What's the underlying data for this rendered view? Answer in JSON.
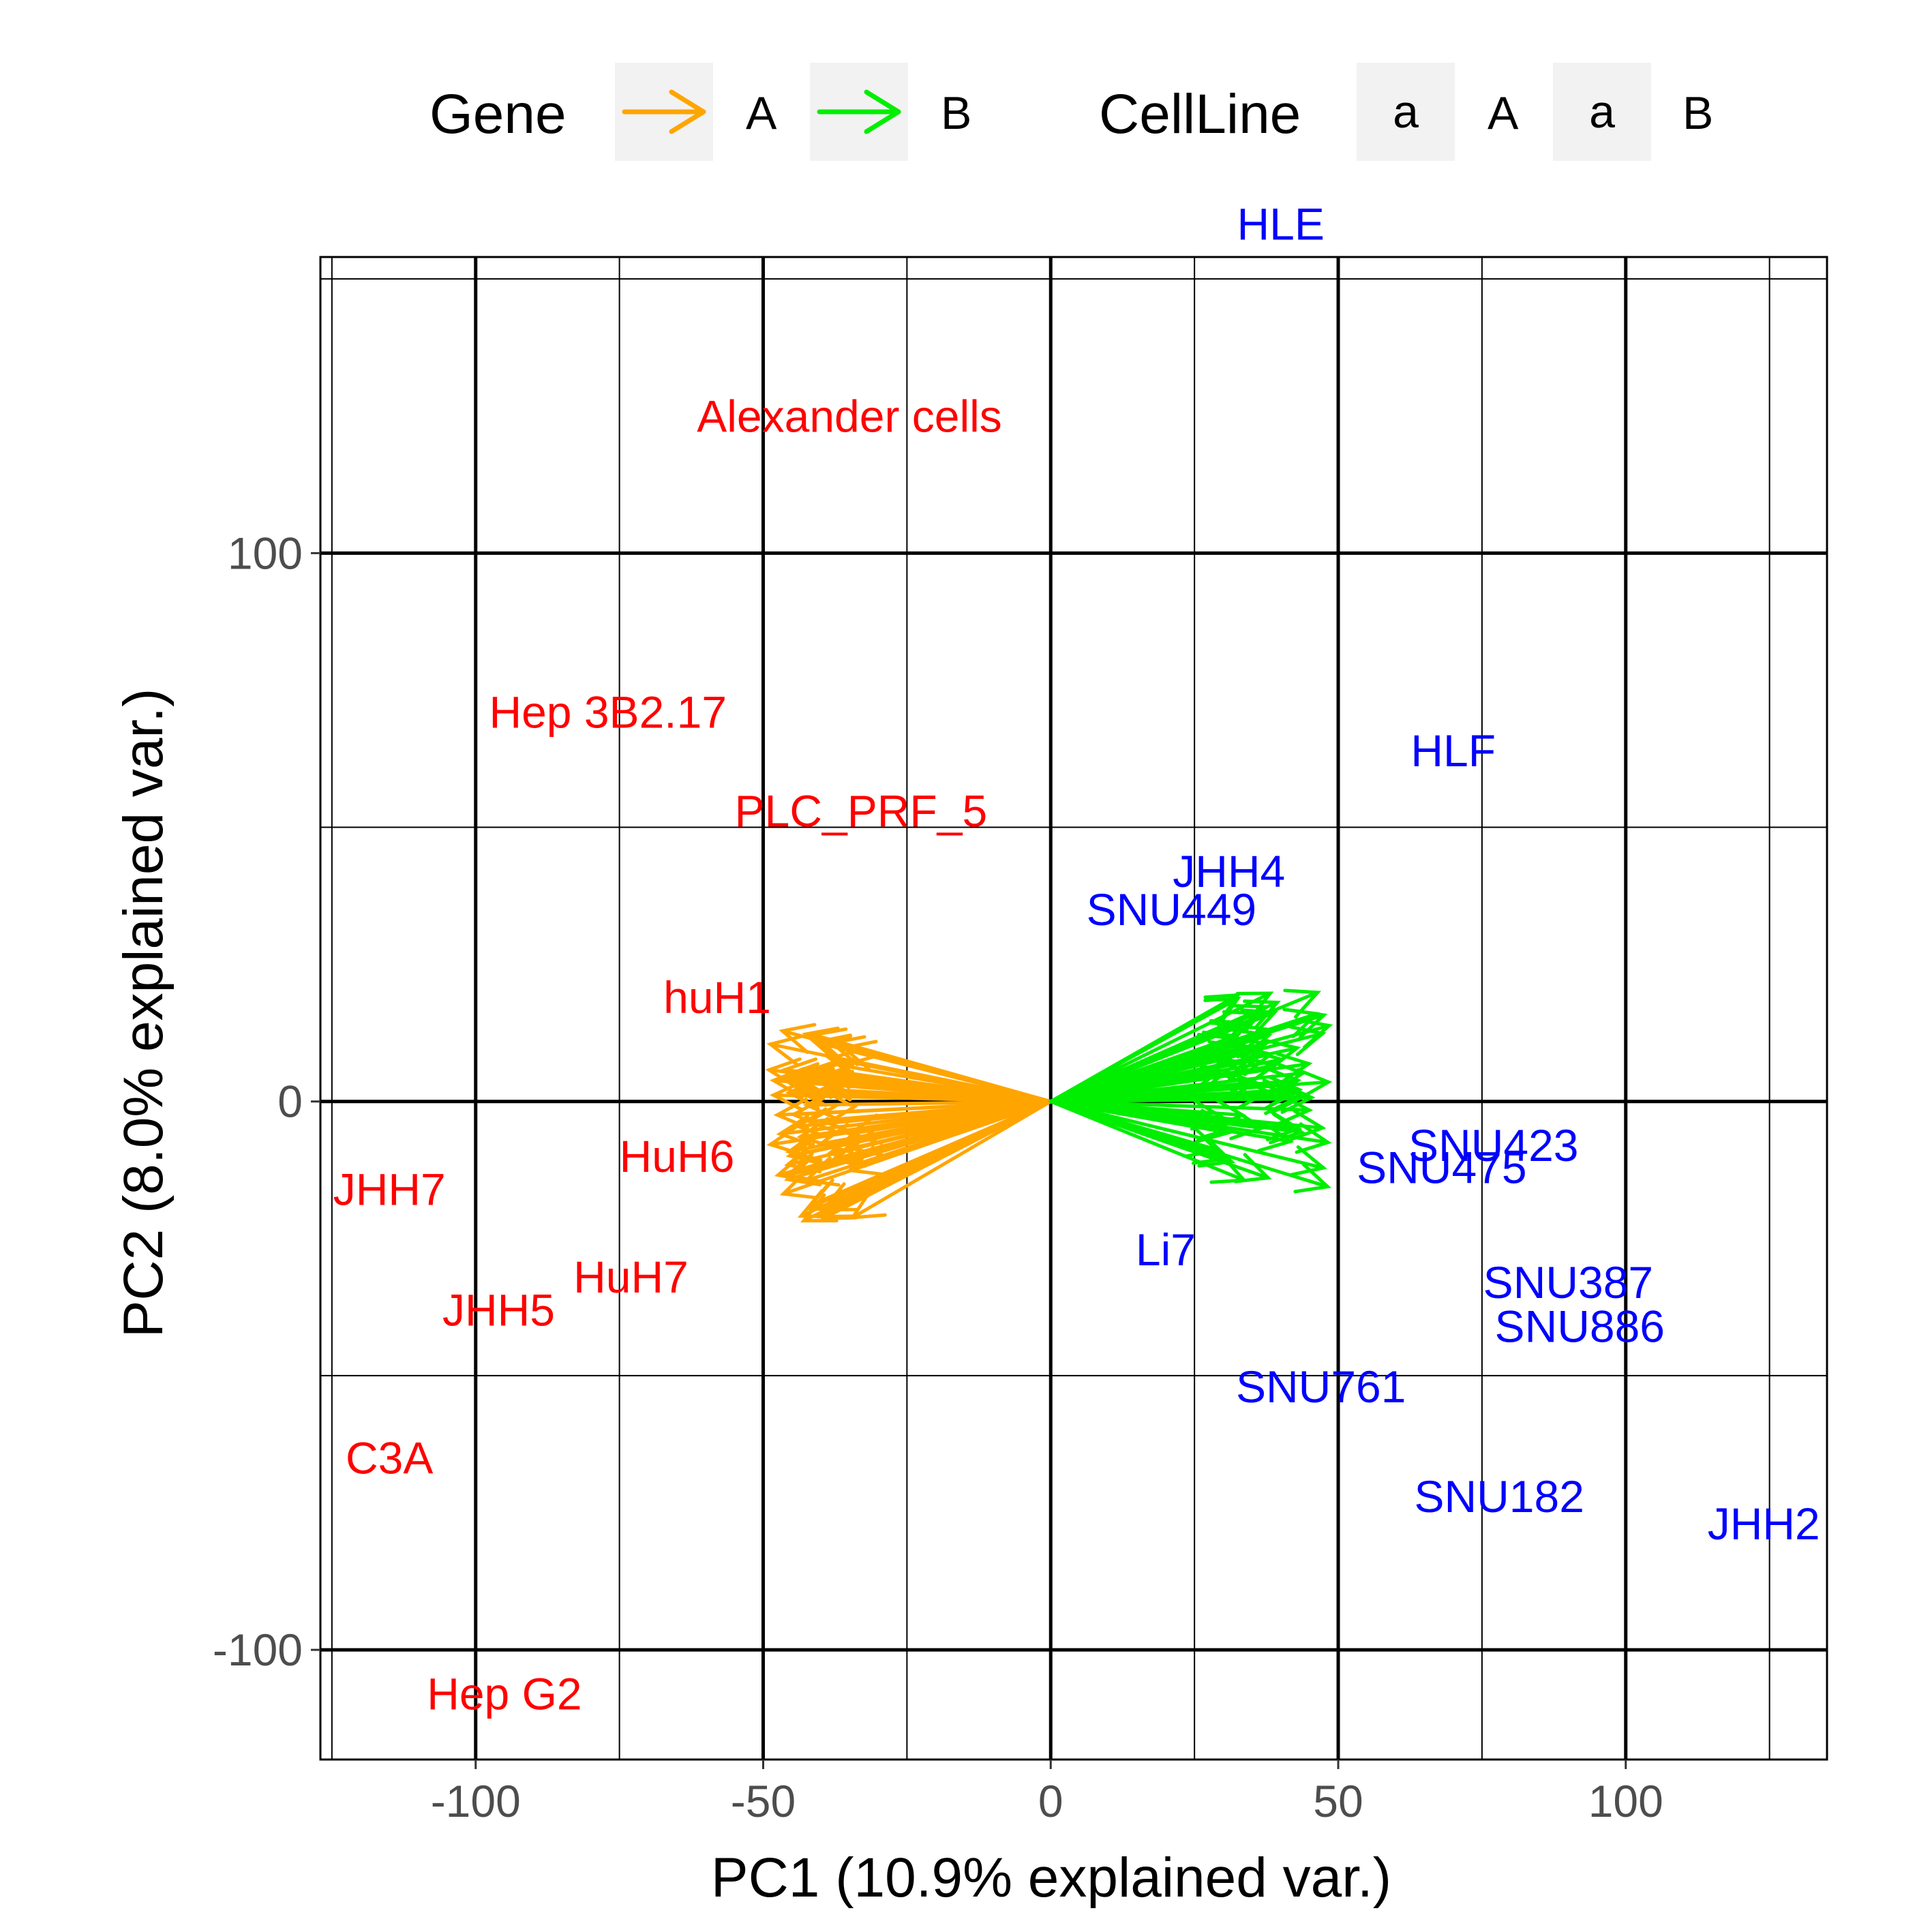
{
  "chart_data": {
    "type": "scatter",
    "title": "",
    "xlabel": "PC1 (10.9% explained var.)",
    "ylabel": "PC2 (8.0% explained var.)",
    "xlim": [
      -127,
      135
    ],
    "ylim": [
      -120,
      154
    ],
    "x_ticks": [
      -100,
      -50,
      0,
      50,
      100
    ],
    "x_tick_labels": [
      "-100",
      "-50",
      "0",
      "50",
      "100"
    ],
    "y_ticks": [
      -100,
      0,
      100
    ],
    "y_tick_labels": [
      "-100",
      "0",
      "100"
    ],
    "grid": true,
    "legend_position": "top",
    "legend": {
      "gene": {
        "title": "Gene",
        "items": [
          {
            "label": "A",
            "color": "#FFA500"
          },
          {
            "label": "B",
            "color": "#00EE00"
          }
        ]
      },
      "cellline": {
        "title": "CellLine",
        "key_glyph": "a",
        "items": [
          {
            "label": "A",
            "color": "#FF0000"
          },
          {
            "label": "B",
            "color": "#0000FF"
          }
        ]
      }
    },
    "colors": {
      "gene_A": "#FFA500",
      "gene_B": "#00EE00",
      "cell_A": "#FF0000",
      "cell_B": "#0000FF"
    },
    "points": [
      {
        "label": "HLE",
        "x": 40,
        "y": 160,
        "group": "B"
      },
      {
        "label": "Alexander cells",
        "x": -35,
        "y": 125,
        "group": "A"
      },
      {
        "label": "Hep 3B2.17",
        "x": -77,
        "y": 71,
        "group": "A"
      },
      {
        "label": "HLF",
        "x": 70,
        "y": 64,
        "group": "B"
      },
      {
        "label": "PLC_PRF_5",
        "x": -33,
        "y": 53,
        "group": "A"
      },
      {
        "label": "JHH4",
        "x": 31,
        "y": 42,
        "group": "B"
      },
      {
        "label": "SNU449",
        "x": 21,
        "y": 35,
        "group": "B"
      },
      {
        "label": "huH1",
        "x": -58,
        "y": 19,
        "group": "A"
      },
      {
        "label": "SNU423",
        "x": 77,
        "y": -8,
        "group": "B"
      },
      {
        "label": "HuH6",
        "x": -65,
        "y": -10,
        "group": "A"
      },
      {
        "label": "SNU475",
        "x": 68,
        "y": -12,
        "group": "B"
      },
      {
        "label": "JHH7",
        "x": -115,
        "y": -16,
        "group": "A"
      },
      {
        "label": "Li7",
        "x": 20,
        "y": -27,
        "group": "B"
      },
      {
        "label": "SNU387",
        "x": 90,
        "y": -33,
        "group": "B"
      },
      {
        "label": "HuH7",
        "x": -73,
        "y": -32,
        "group": "A"
      },
      {
        "label": "JHH5",
        "x": -96,
        "y": -38,
        "group": "A"
      },
      {
        "label": "SNU886",
        "x": 92,
        "y": -41,
        "group": "B"
      },
      {
        "label": "SNU761",
        "x": 47,
        "y": -52,
        "group": "B"
      },
      {
        "label": "C3A",
        "x": -115,
        "y": -65,
        "group": "A"
      },
      {
        "label": "SNU182",
        "x": 78,
        "y": -72,
        "group": "B"
      },
      {
        "label": "JHH2",
        "x": 124,
        "y": -77,
        "group": "B"
      },
      {
        "label": "Hep G2",
        "x": -95,
        "y": -108,
        "group": "A"
      }
    ],
    "gene_loadings": {
      "A_summary": {
        "count": 60,
        "x_range": [
          -49,
          -34
        ],
        "y_range": [
          -22,
          14
        ]
      },
      "B_summary": {
        "count": 60,
        "x_range": [
          29,
          49
        ],
        "y_range": [
          -16,
          20
        ]
      }
    }
  }
}
